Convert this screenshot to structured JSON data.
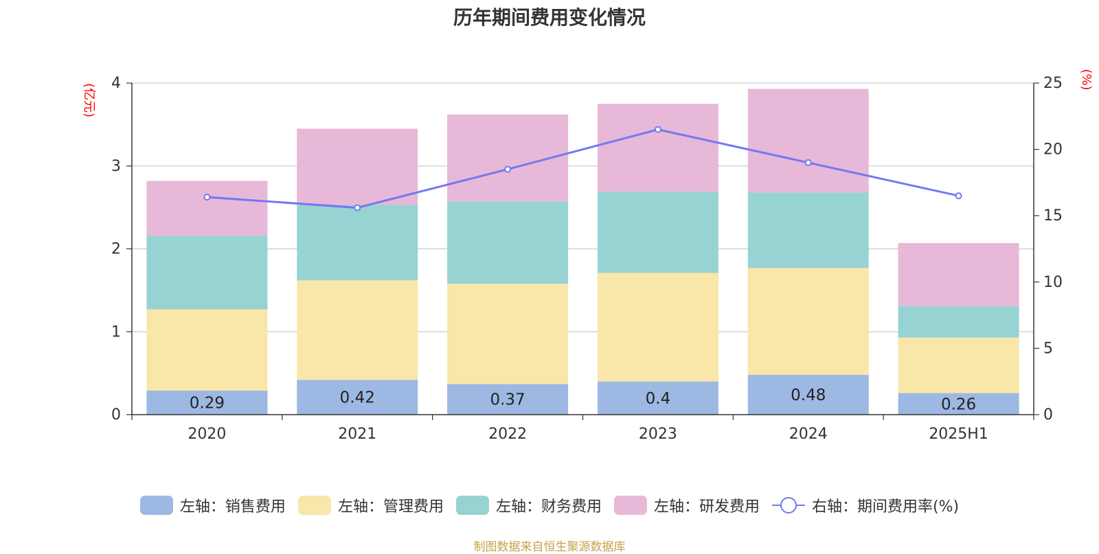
{
  "title": "历年期间费用变化情况",
  "source": "制图数据来自恒生聚源数据库",
  "colors": {
    "sales": "#9db8e2",
    "admin": "#f8e7a8",
    "finance": "#97d3d3",
    "rd": "#e8b8d8",
    "rate": "#7378f0",
    "axis_unit": "#ff0000"
  },
  "chart_data": {
    "type": "bar",
    "stacked": true,
    "categories": [
      "2020",
      "2021",
      "2022",
      "2023",
      "2024",
      "2025H1"
    ],
    "y_left": {
      "unit_label": "(亿元)",
      "ylim": [
        0,
        4
      ],
      "ticks": [
        0,
        1,
        2,
        3,
        4
      ]
    },
    "y_right": {
      "unit_label": "(%)",
      "ylim": [
        0,
        25
      ],
      "ticks": [
        0,
        5,
        10,
        15,
        20,
        25
      ]
    },
    "grid": true,
    "legend_position": "bottom",
    "series": [
      {
        "name": "左轴：销售费用",
        "axis": "left",
        "color_key": "sales",
        "values": [
          0.29,
          0.42,
          0.37,
          0.4,
          0.48,
          0.26
        ],
        "show_labels": true
      },
      {
        "name": "左轴：管理费用",
        "axis": "left",
        "color_key": "admin",
        "values": [
          0.98,
          1.2,
          1.21,
          1.31,
          1.29,
          0.67
        ]
      },
      {
        "name": "左轴：财务费用",
        "axis": "left",
        "color_key": "finance",
        "values": [
          0.89,
          0.91,
          0.99,
          0.98,
          0.91,
          0.38
        ]
      },
      {
        "name": "左轴：研发费用",
        "axis": "left",
        "color_key": "rd",
        "values": [
          0.66,
          0.92,
          1.05,
          1.06,
          1.25,
          0.76
        ]
      },
      {
        "name": "右轴：期间费用率(%)",
        "axis": "right",
        "type": "line",
        "color_key": "rate",
        "values": [
          16.4,
          15.6,
          18.5,
          21.5,
          19.0,
          16.5
        ]
      }
    ]
  }
}
